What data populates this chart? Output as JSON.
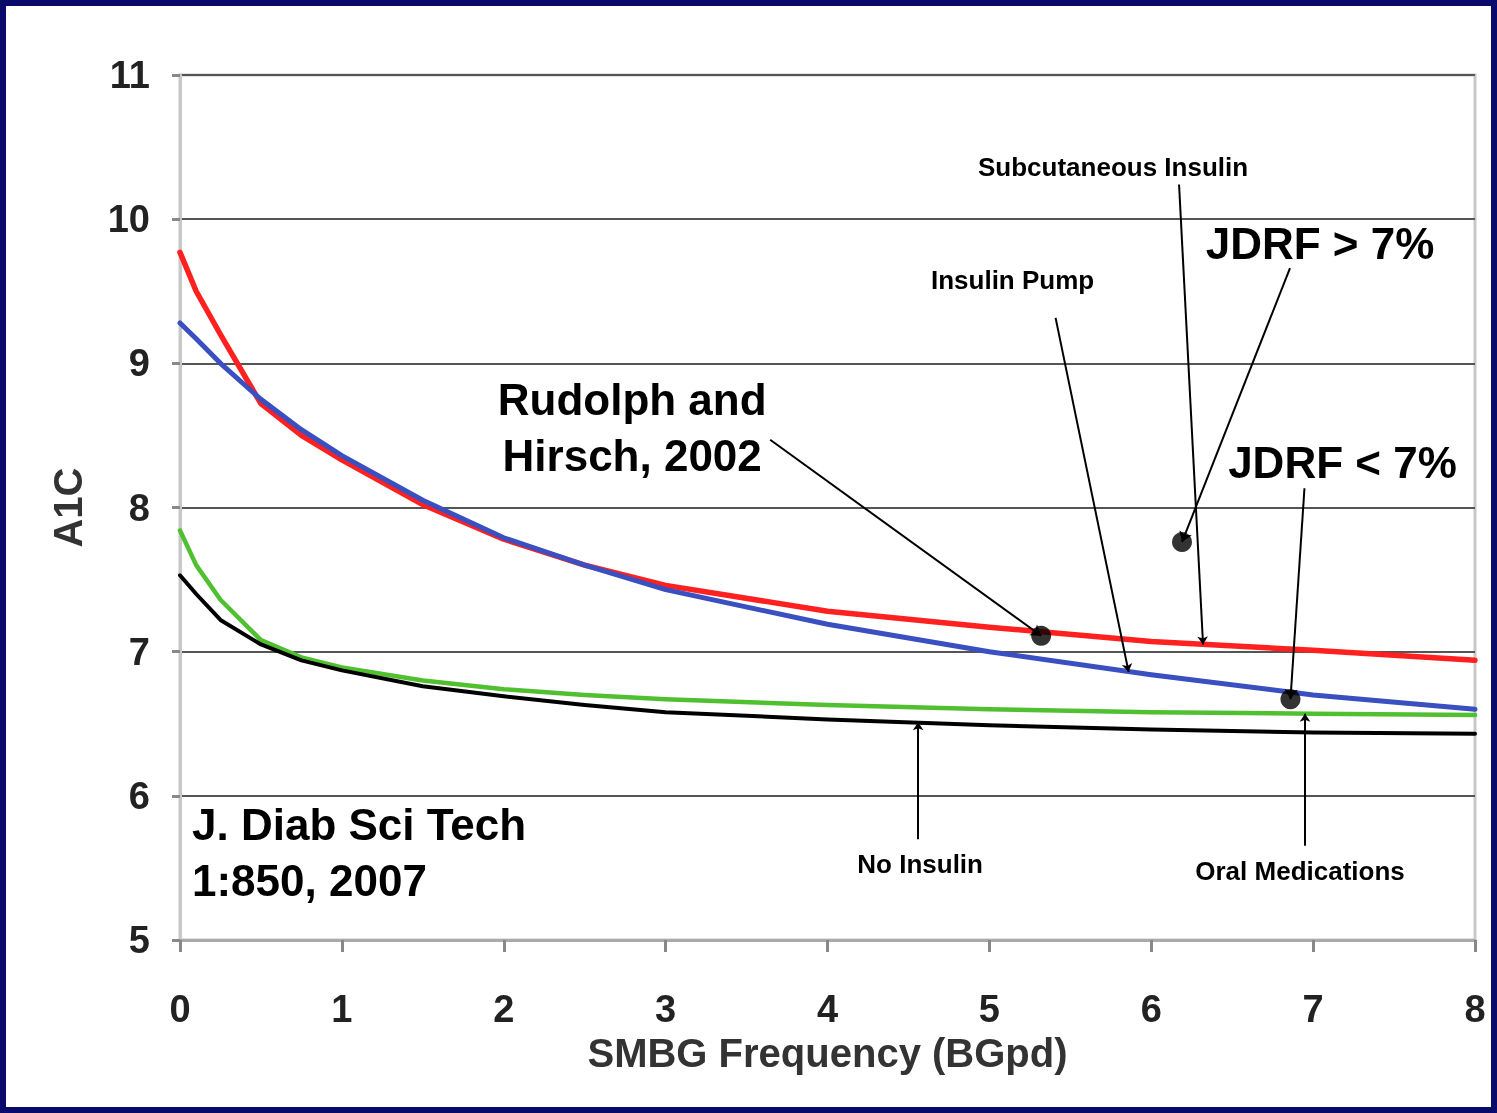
{
  "chart_data": {
    "type": "line",
    "xlabel": "SMBG Frequency (BGpd)",
    "ylabel": "A1C",
    "xlim": [
      0,
      8
    ],
    "xticks": [
      0,
      1,
      2,
      3,
      4,
      5,
      6,
      7,
      8
    ],
    "ylim": [
      5,
      11
    ],
    "yticks": [
      5,
      6,
      7,
      8,
      9,
      10,
      11
    ],
    "grid": "y",
    "marker": "none",
    "line_style": "solid",
    "series": [
      {
        "color": "#ff2020",
        "x": [
          0,
          0.1,
          0.25,
          0.5,
          0.75,
          1,
          1.5,
          2,
          2.5,
          3,
          4,
          5,
          6,
          7,
          8
        ],
        "values": [
          9.77,
          9.5,
          9.2,
          8.72,
          8.5,
          8.33,
          8.02,
          7.78,
          7.6,
          7.46,
          7.28,
          7.17,
          7.07,
          7.01,
          6.94
        ]
      },
      {
        "color": "#3a4fc0",
        "x": [
          0,
          0.1,
          0.25,
          0.5,
          0.75,
          1,
          1.5,
          2,
          2.5,
          3,
          4,
          5,
          6,
          7,
          8
        ],
        "values": [
          9.28,
          9.17,
          9.0,
          8.75,
          8.54,
          8.36,
          8.05,
          7.79,
          7.6,
          7.43,
          7.19,
          7.0,
          6.84,
          6.7,
          6.6
        ]
      },
      {
        "color": "#50c030",
        "x": [
          0,
          0.1,
          0.25,
          0.5,
          0.75,
          1,
          1.5,
          2,
          2.5,
          3,
          4,
          5,
          6,
          7,
          8
        ],
        "values": [
          7.84,
          7.6,
          7.36,
          7.08,
          6.96,
          6.89,
          6.8,
          6.74,
          6.7,
          6.67,
          6.63,
          6.6,
          6.58,
          6.57,
          6.56
        ]
      },
      {
        "color": "#000000",
        "x": [
          0,
          0.1,
          0.25,
          0.5,
          0.75,
          1,
          1.5,
          2,
          2.5,
          3,
          4,
          5,
          6,
          7,
          8
        ],
        "values": [
          7.53,
          7.4,
          7.22,
          7.05,
          6.94,
          6.87,
          6.76,
          6.69,
          6.63,
          6.58,
          6.53,
          6.49,
          6.46,
          6.44,
          6.43
        ]
      },
      {
        "type": "scatter",
        "marker": "circle",
        "color": "#000000",
        "x": [
          5.32,
          6.19,
          6.86
        ],
        "values": [
          7.11,
          7.76,
          6.67
        ]
      }
    ],
    "annotations": [
      {
        "text": "Rudolph and\nHirsch, 2002",
        "x": 5.32,
        "y": 7.11
      },
      {
        "text": "JDRF > 7%",
        "x": 6.19,
        "y": 7.76
      },
      {
        "text": "JDRF < 7%",
        "x": 6.86,
        "y": 6.67
      },
      {
        "text": "Subcutaneous Insulin",
        "x": 6.32,
        "y": 7.05
      },
      {
        "text": "Insulin Pump",
        "x": 5.86,
        "y": 6.86
      },
      {
        "text": "No Insulin",
        "x": 4.56,
        "y": 6.51
      },
      {
        "text": "Oral Medications",
        "x": 6.95,
        "y": 6.57
      },
      "J. Diab Sci Tech\n1:850, 2007"
    ]
  }
}
